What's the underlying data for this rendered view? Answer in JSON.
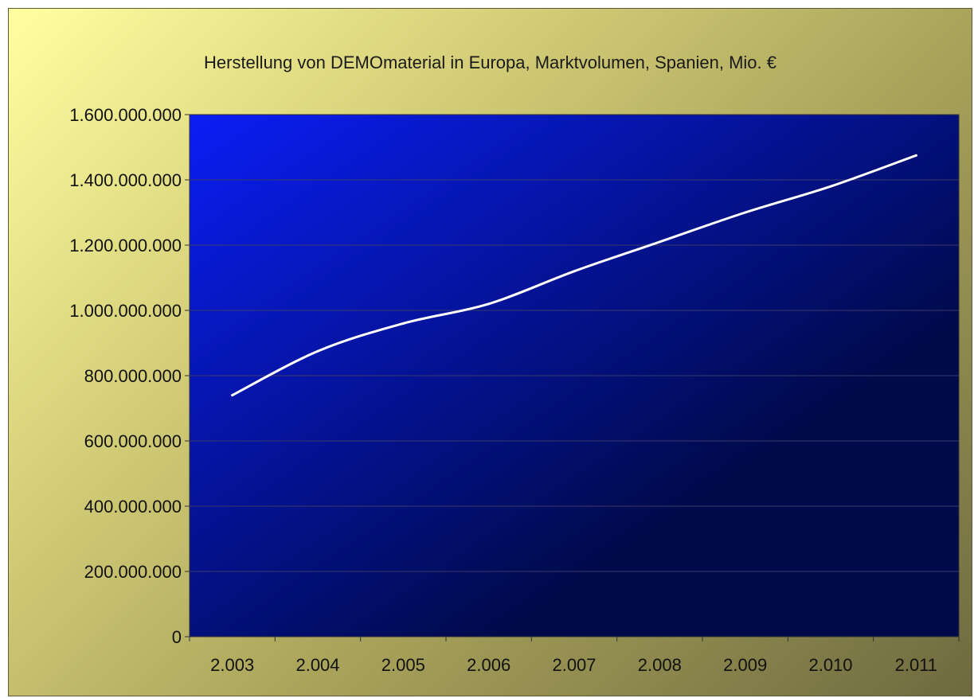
{
  "chart_data": {
    "type": "line",
    "title": "Herstellung von DEMOmaterial in Europa, Marktvolumen, Spanien, Mio. €",
    "xlabel": "",
    "ylabel": "",
    "categories": [
      "2.003",
      "2.004",
      "2.005",
      "2.006",
      "2.007",
      "2.008",
      "2.009",
      "2.010",
      "2.011"
    ],
    "series": [
      {
        "values": [
          740000000,
          875000000,
          960000000,
          1020000000,
          1120000000,
          1210000000,
          1300000000,
          1380000000,
          1475000000
        ]
      }
    ],
    "ylim": [
      0,
      1600000000
    ],
    "y_ticks": [
      0,
      200000000,
      400000000,
      600000000,
      800000000,
      1000000000,
      1200000000,
      1400000000,
      1600000000
    ],
    "y_tick_labels": [
      "0",
      "200.000.000",
      "400.000.000",
      "600.000.000",
      "800.000.000",
      "1.000.000.000",
      "1.200.000.000",
      "1.400.000.000",
      "1.600.000.000"
    ],
    "grid": true,
    "legend": "none",
    "colors": {
      "line": "#ffffff",
      "plot_bg_light": "#0a1ef5",
      "plot_bg_dark": "#000a4a",
      "gridline": "#3a3a6a"
    }
  }
}
